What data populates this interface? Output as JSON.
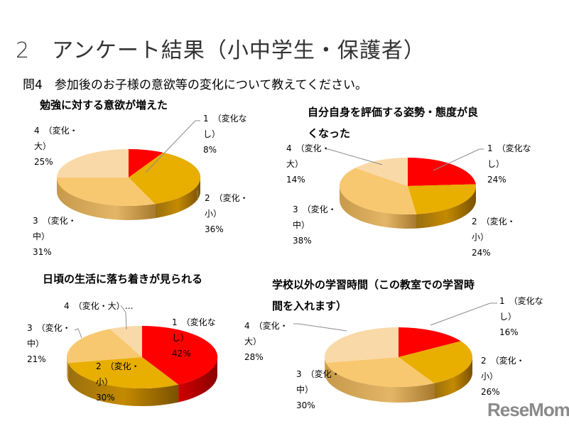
{
  "header": {
    "title": "2　アンケート結果（小中学生・保護者）",
    "question": "問4　参加後のお子様の意欲等の変化について教えてください。"
  },
  "colors": {
    "none": "#FF0000",
    "small": "#E8AE00",
    "medium": "#F8C870",
    "large": "#FAD9A8"
  },
  "charts": [
    {
      "title_lines": [
        "勉強に対する意欲が増えた"
      ],
      "labels": [
        {
          "text": "1　（変化な\nし）\n8%"
        },
        {
          "text": "2　（変化・\n小）\n36%"
        },
        {
          "text": "3　（変化・\n中）\n31%"
        },
        {
          "text": "4　（変化・\n大）\n25%"
        }
      ]
    },
    {
      "title_lines": [
        "自分自身を評価する姿勢・態度が良",
        "くなった"
      ],
      "labels": [
        {
          "text": "1　（変化な\nし）\n24%"
        },
        {
          "text": "2　（変化・\n小）\n24%"
        },
        {
          "text": "3　（変化・\n中）\n38%"
        },
        {
          "text": "4　（変化・\n大）\n14%"
        }
      ]
    },
    {
      "title_lines": [
        "日頃の生活に落ち着きが見られる"
      ],
      "labels": [
        {
          "text": "1　（変化な\nし）\n42%"
        },
        {
          "text": "2　（変化・\n小）\n30%"
        },
        {
          "text": "3　（変化・\n中）\n21%"
        },
        {
          "text": "4　（変化・大）…"
        }
      ]
    },
    {
      "title_lines": [
        "学校以外の学習時間（この教室での学習時",
        "間を入れます）"
      ],
      "labels": [
        {
          "text": "1　（変化な\nし）\n16%"
        },
        {
          "text": "2　（変化・\n小）\n26%"
        },
        {
          "text": "3　（変化・\n中）\n30%"
        },
        {
          "text": "4　（変化・\n大）\n28%"
        }
      ]
    }
  ],
  "watermark": "ReseMom",
  "chart_data": [
    {
      "type": "pie",
      "title": "勉強に対する意欲が増えた",
      "categories": [
        "1（変化なし）",
        "2（変化・小）",
        "3（変化・中）",
        "4（変化・大）"
      ],
      "values": [
        8,
        36,
        31,
        25
      ],
      "unit": "%"
    },
    {
      "type": "pie",
      "title": "自分自身を評価する姿勢・態度が良くなった",
      "categories": [
        "1（変化なし）",
        "2（変化・小）",
        "3（変化・中）",
        "4（変化・大）"
      ],
      "values": [
        24,
        24,
        38,
        14
      ],
      "unit": "%"
    },
    {
      "type": "pie",
      "title": "日頃の生活に落ち着きが見られる",
      "categories": [
        "1（変化なし）",
        "2（変化・小）",
        "3（変化・中）",
        "4（変化・大）"
      ],
      "values": [
        42,
        30,
        21,
        7
      ],
      "unit": "%"
    },
    {
      "type": "pie",
      "title": "学校以外の学習時間（この教室での学習時間を入れます）",
      "categories": [
        "1（変化なし）",
        "2（変化・小）",
        "3（変化・中）",
        "4（変化・大）"
      ],
      "values": [
        16,
        26,
        30,
        28
      ],
      "unit": "%"
    }
  ]
}
